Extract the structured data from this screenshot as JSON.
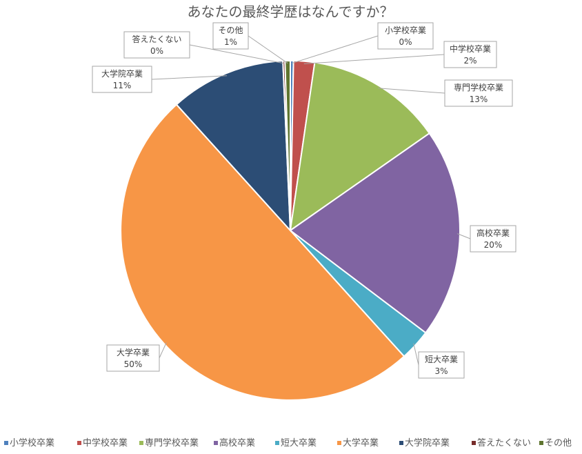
{
  "chart_data": {
    "type": "pie",
    "title": "あなたの最終学歴はなんですか？",
    "slices": [
      {
        "name": "小学校卒業",
        "value": 0.3,
        "label": "0%",
        "color": "#4F81BD"
      },
      {
        "name": "中学校卒業",
        "value": 2,
        "label": "2%",
        "color": "#C0504D"
      },
      {
        "name": "専門学校卒業",
        "value": 13,
        "label": "13%",
        "color": "#9BBB59"
      },
      {
        "name": "高校卒業",
        "value": 20,
        "label": "20%",
        "color": "#8064A2"
      },
      {
        "name": "短大卒業",
        "value": 3,
        "label": "3%",
        "color": "#4BACC6"
      },
      {
        "name": "大学卒業",
        "value": 50,
        "label": "50%",
        "color": "#F79646"
      },
      {
        "name": "大学院卒業",
        "value": 11,
        "label": "11%",
        "color": "#2C4D75"
      },
      {
        "name": "答えたくない",
        "value": 0.2,
        "label": "0%",
        "color": "#772C2A"
      },
      {
        "name": "その他",
        "value": 0.5,
        "label": "1%",
        "color": "#5F7530"
      }
    ],
    "legend_position": "bottom"
  }
}
